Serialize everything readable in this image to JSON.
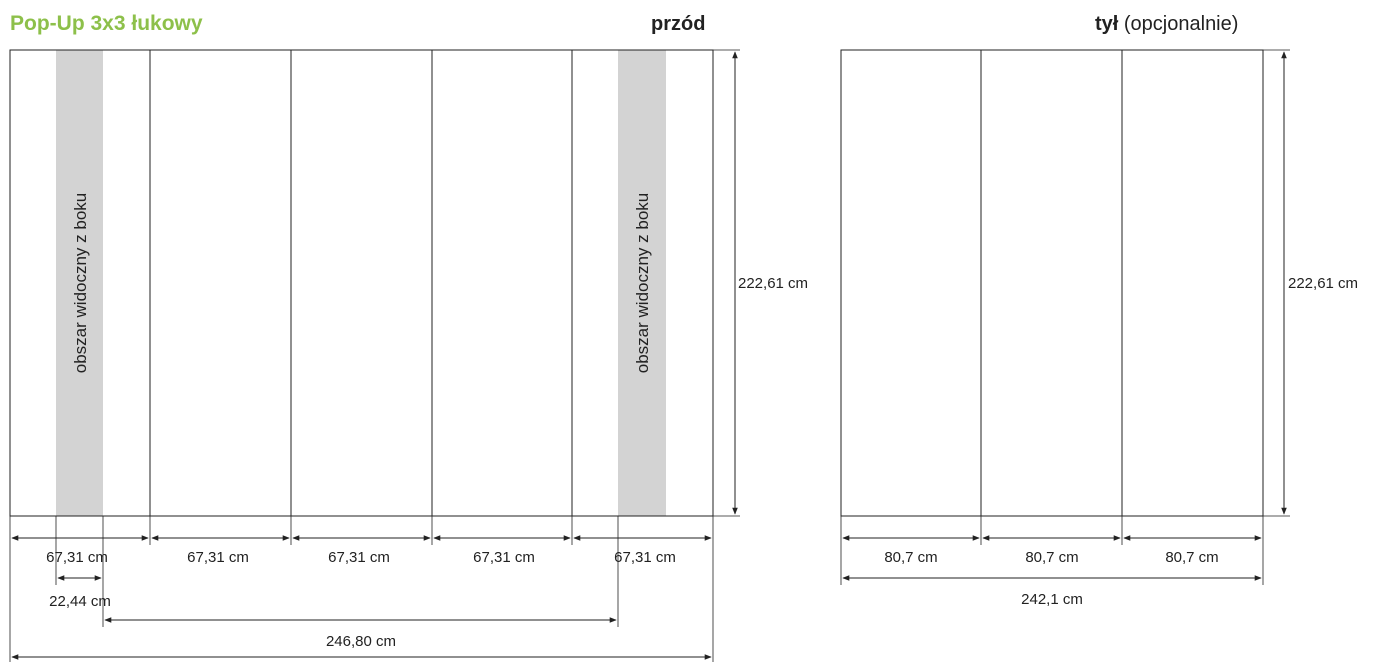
{
  "title": "Pop-Up 3x3 łukowy",
  "front": {
    "label": "przód",
    "height_label": "222,61 cm",
    "panel_widths": [
      "67,31 cm",
      "67,31 cm",
      "67,31 cm",
      "67,31 cm",
      "67,31 cm"
    ],
    "side_area_text": "obszar widoczny z boku",
    "side_width_label": "22,44 cm",
    "visible_width_label": "246,80 cm"
  },
  "back": {
    "label_bold": "tył",
    "label_rest": " (opcjonalnie)",
    "height_label": "222,61 cm",
    "panel_widths": [
      "80,7 cm",
      "80,7 cm",
      "80,7 cm"
    ],
    "total_width_label": "242,1 cm"
  },
  "colors": {
    "title": "#8dc04a",
    "side_area": "#d3d3d3",
    "line": "#222222"
  }
}
